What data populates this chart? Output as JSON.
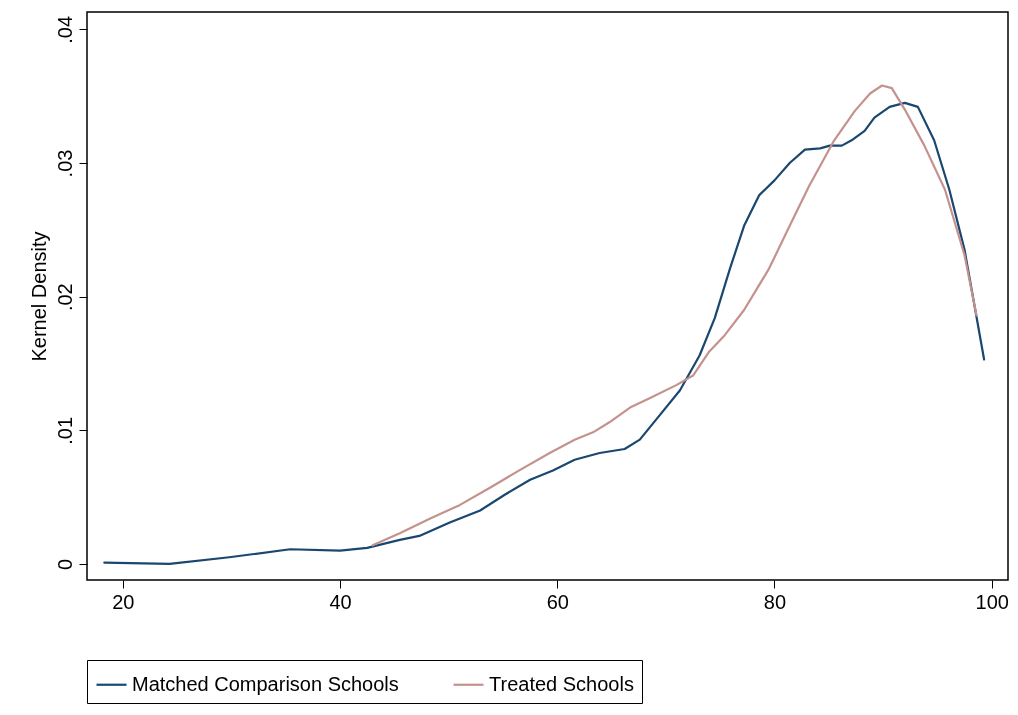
{
  "chart_data": {
    "type": "line",
    "ylabel": "Kernel Density",
    "xlim": [
      16.7,
      101.5
    ],
    "xticks": [
      20,
      40,
      60,
      80,
      100
    ],
    "ylim": [
      -0.0012,
      0.0413
    ],
    "yticks": [
      0,
      {
        "value": 0.01,
        "label": ".01"
      },
      {
        "value": 0.02,
        "label": ".02"
      },
      {
        "value": 0.03,
        "label": ".03"
      },
      {
        "value": 0.04,
        "label": ".04"
      }
    ],
    "grid": false,
    "legend": "bottom",
    "series": [
      {
        "name": "Matched Comparison Schools",
        "color": "#1a476f",
        "x": [
          18.3,
          24.3,
          29.8,
          35.4,
          40,
          42.5,
          45.5,
          47.3,
          50.1,
          52.9,
          55.2,
          57.5,
          59.6,
          61.6,
          63.9,
          66.2,
          67.6,
          69.4,
          71.3,
          73.1,
          74.5,
          75.9,
          77.2,
          78.6,
          80,
          81.4,
          82.8,
          84.2,
          85.1,
          86.2,
          87.1,
          88.3,
          89.2,
          90.6,
          92,
          93.2,
          94.7,
          96.1,
          97.5,
          99.3
        ],
        "values": [
          0.0001,
          0.0,
          0.0005,
          0.0011,
          0.001,
          0.0012,
          0.0018,
          0.0021,
          0.0031,
          0.004,
          0.0052,
          0.0063,
          0.007,
          0.0078,
          0.0083,
          0.0086,
          0.0093,
          0.0111,
          0.013,
          0.0156,
          0.0184,
          0.0221,
          0.0253,
          0.0276,
          0.0287,
          0.03,
          0.031,
          0.0311,
          0.0313,
          0.0313,
          0.0317,
          0.0324,
          0.0334,
          0.0342,
          0.0345,
          0.0342,
          0.0317,
          0.028,
          0.0235,
          0.0153
        ]
      },
      {
        "name": "Treated Schools",
        "color": "#c4928d",
        "x": [
          43,
          45.5,
          48.3,
          51,
          53.8,
          56.5,
          59.3,
          61.6,
          63.4,
          64.8,
          66.7,
          68.5,
          71,
          72.5,
          74,
          75.4,
          77.2,
          79.5,
          81.4,
          83.2,
          85.5,
          87.4,
          88.8,
          89.9,
          90.8,
          92,
          93.8,
          95.7,
          97.5,
          98.6
        ],
        "values": [
          0.0014,
          0.0023,
          0.0034,
          0.0044,
          0.0057,
          0.007,
          0.0083,
          0.0093,
          0.0099,
          0.0106,
          0.0117,
          0.0124,
          0.0134,
          0.0141,
          0.0159,
          0.0171,
          0.019,
          0.0221,
          0.0253,
          0.0283,
          0.0317,
          0.0339,
          0.0352,
          0.0358,
          0.0356,
          0.034,
          0.0313,
          0.028,
          0.0231,
          0.0186
        ]
      }
    ]
  }
}
